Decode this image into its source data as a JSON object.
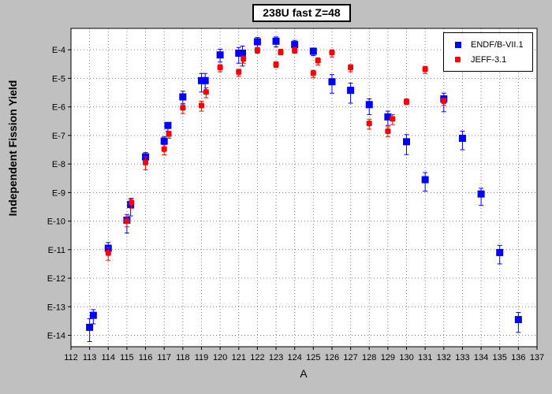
{
  "chart_data": {
    "type": "scatter",
    "title": "238U fast Z=48",
    "xlabel": "A",
    "ylabel": "Independent Fission Yield",
    "xlim": [
      112,
      137
    ],
    "x_ticks": [
      112,
      113,
      114,
      115,
      116,
      117,
      118,
      119,
      120,
      121,
      122,
      123,
      124,
      125,
      126,
      127,
      128,
      129,
      130,
      131,
      132,
      133,
      134,
      135,
      136,
      137
    ],
    "ylim_log10": [
      -14.4,
      -3.25
    ],
    "y_scale": "log",
    "y_ticks": [
      {
        "exp": -4,
        "label": "E-4"
      },
      {
        "exp": -5,
        "label": "E-5"
      },
      {
        "exp": -6,
        "label": "E-6"
      },
      {
        "exp": -7,
        "label": "E-7"
      },
      {
        "exp": -8,
        "label": "E-8"
      },
      {
        "exp": -9,
        "label": "E-9"
      },
      {
        "exp": -10,
        "label": "E-10"
      },
      {
        "exp": -11,
        "label": "E-11"
      },
      {
        "exp": -12,
        "label": "E-12"
      },
      {
        "exp": -13,
        "label": "E-13"
      },
      {
        "exp": -14,
        "label": "E-14"
      }
    ],
    "grid": true,
    "legend_position": "top-right",
    "series": [
      {
        "name": "ENDF/B-VII.1",
        "color": "#0000ff",
        "marker": "square",
        "points": [
          {
            "a": 113,
            "log10_y": -13.72,
            "err_lo": 0.5,
            "err_hi": 0.3
          },
          {
            "a": 113.2,
            "log10_y": -13.3,
            "err_lo": 0.3,
            "err_hi": 0.2
          },
          {
            "a": 114,
            "log10_y": -10.95,
            "err_lo": 0.2,
            "err_hi": 0.2
          },
          {
            "a": 115,
            "log10_y": -9.97,
            "err_lo": 0.45,
            "err_hi": 0.2
          },
          {
            "a": 115.2,
            "log10_y": -9.42,
            "err_lo": 0.4,
            "err_hi": 0.2
          },
          {
            "a": 116,
            "log10_y": -7.75,
            "err_lo": 0.25,
            "err_hi": 0.15
          },
          {
            "a": 117,
            "log10_y": -7.2,
            "err_lo": 0.3,
            "err_hi": 0.15
          },
          {
            "a": 117.2,
            "log10_y": -6.65,
            "err_lo": 0.2,
            "err_hi": 0.1
          },
          {
            "a": 118,
            "log10_y": -5.65,
            "err_lo": 0.25,
            "err_hi": 0.2
          },
          {
            "a": 119,
            "log10_y": -5.08,
            "err_lo": 0.4,
            "err_hi": 0.25
          },
          {
            "a": 119.2,
            "log10_y": -5.08,
            "err_lo": 0.4,
            "err_hi": 0.25
          },
          {
            "a": 120,
            "log10_y": -4.18,
            "err_lo": 0.25,
            "err_hi": 0.2
          },
          {
            "a": 121,
            "log10_y": -4.12,
            "err_lo": 0.35,
            "err_hi": 0.2
          },
          {
            "a": 121.2,
            "log10_y": -4.12,
            "err_lo": 0.45,
            "err_hi": 0.25
          },
          {
            "a": 122,
            "log10_y": -3.72,
            "err_lo": 0.2,
            "err_hi": 0.15
          },
          {
            "a": 123,
            "log10_y": -3.7,
            "err_lo": 0.2,
            "err_hi": 0.15
          },
          {
            "a": 124,
            "log10_y": -3.82,
            "err_lo": 0.2,
            "err_hi": 0.15
          },
          {
            "a": 125,
            "log10_y": -4.05,
            "err_lo": 0.15,
            "err_hi": 0.1
          },
          {
            "a": 126,
            "log10_y": -5.12,
            "err_lo": 0.4,
            "err_hi": 0.25
          },
          {
            "a": 127,
            "log10_y": -5.42,
            "err_lo": 0.45,
            "err_hi": 0.25
          },
          {
            "a": 128,
            "log10_y": -5.92,
            "err_lo": 0.35,
            "err_hi": 0.2
          },
          {
            "a": 129,
            "log10_y": -6.35,
            "err_lo": 0.3,
            "err_hi": 0.2
          },
          {
            "a": 130,
            "log10_y": -7.22,
            "err_lo": 0.45,
            "err_hi": 0.25
          },
          {
            "a": 131,
            "log10_y": -8.55,
            "err_lo": 0.4,
            "err_hi": 0.25
          },
          {
            "a": 132,
            "log10_y": -5.72,
            "err_lo": 0.45,
            "err_hi": 0.2
          },
          {
            "a": 133,
            "log10_y": -7.1,
            "err_lo": 0.4,
            "err_hi": 0.25
          },
          {
            "a": 134,
            "log10_y": -9.05,
            "err_lo": 0.4,
            "err_hi": 0.2
          },
          {
            "a": 135,
            "log10_y": -11.1,
            "err_lo": 0.4,
            "err_hi": 0.25
          },
          {
            "a": 136,
            "log10_y": -13.45,
            "err_lo": 0.45,
            "err_hi": 0.25
          }
        ]
      },
      {
        "name": "JEFF-3.1",
        "color": "#ff0000",
        "marker": "rounded-square",
        "points": [
          {
            "a": 114,
            "log10_y": -11.12,
            "err_lo": 0.25,
            "err_hi": 0.2
          },
          {
            "a": 115,
            "log10_y": -10.0,
            "err_lo": 0.2,
            "err_hi": 0.15
          },
          {
            "a": 115.25,
            "log10_y": -9.35,
            "err_lo": 0.2,
            "err_hi": 0.15
          },
          {
            "a": 116,
            "log10_y": -7.95,
            "err_lo": 0.25,
            "err_hi": 0.2
          },
          {
            "a": 117,
            "log10_y": -7.48,
            "err_lo": 0.2,
            "err_hi": 0.15
          },
          {
            "a": 117.25,
            "log10_y": -6.95,
            "err_lo": 0.15,
            "err_hi": 0.1
          },
          {
            "a": 118,
            "log10_y": -6.03,
            "err_lo": 0.2,
            "err_hi": 0.15
          },
          {
            "a": 119,
            "log10_y": -5.95,
            "err_lo": 0.2,
            "err_hi": 0.15
          },
          {
            "a": 119.25,
            "log10_y": -5.48,
            "err_lo": 0.2,
            "err_hi": 0.15
          },
          {
            "a": 120,
            "log10_y": -4.62,
            "err_lo": 0.15,
            "err_hi": 0.1
          },
          {
            "a": 121,
            "log10_y": -4.78,
            "err_lo": 0.15,
            "err_hi": 0.1
          },
          {
            "a": 121.25,
            "log10_y": -4.32,
            "err_lo": 0.15,
            "err_hi": 0.1
          },
          {
            "a": 122,
            "log10_y": -4.02,
            "err_lo": 0.1,
            "err_hi": 0.1
          },
          {
            "a": 123,
            "log10_y": -4.52,
            "err_lo": 0.1,
            "err_hi": 0.1
          },
          {
            "a": 123.25,
            "log10_y": -4.08,
            "err_lo": 0.1,
            "err_hi": 0.1
          },
          {
            "a": 124,
            "log10_y": -4.02,
            "err_lo": 0.1,
            "err_hi": 0.1
          },
          {
            "a": 125,
            "log10_y": -4.82,
            "err_lo": 0.15,
            "err_hi": 0.1
          },
          {
            "a": 125.25,
            "log10_y": -4.38,
            "err_lo": 0.15,
            "err_hi": 0.1
          },
          {
            "a": 126,
            "log10_y": -4.1,
            "err_lo": 0.15,
            "err_hi": 0.1
          },
          {
            "a": 127,
            "log10_y": -4.62,
            "err_lo": 0.15,
            "err_hi": 0.1
          },
          {
            "a": 128,
            "log10_y": -6.58,
            "err_lo": 0.2,
            "err_hi": 0.15
          },
          {
            "a": 129,
            "log10_y": -6.85,
            "err_lo": 0.2,
            "err_hi": 0.15
          },
          {
            "a": 129.25,
            "log10_y": -6.42,
            "err_lo": 0.2,
            "err_hi": 0.15
          },
          {
            "a": 130,
            "log10_y": -5.82,
            "err_lo": 0.1,
            "err_hi": 0.1
          },
          {
            "a": 131,
            "log10_y": -4.68,
            "err_lo": 0.15,
            "err_hi": 0.1
          },
          {
            "a": 132,
            "log10_y": -5.8,
            "err_lo": 0.15,
            "err_hi": 0.1
          }
        ]
      }
    ]
  }
}
